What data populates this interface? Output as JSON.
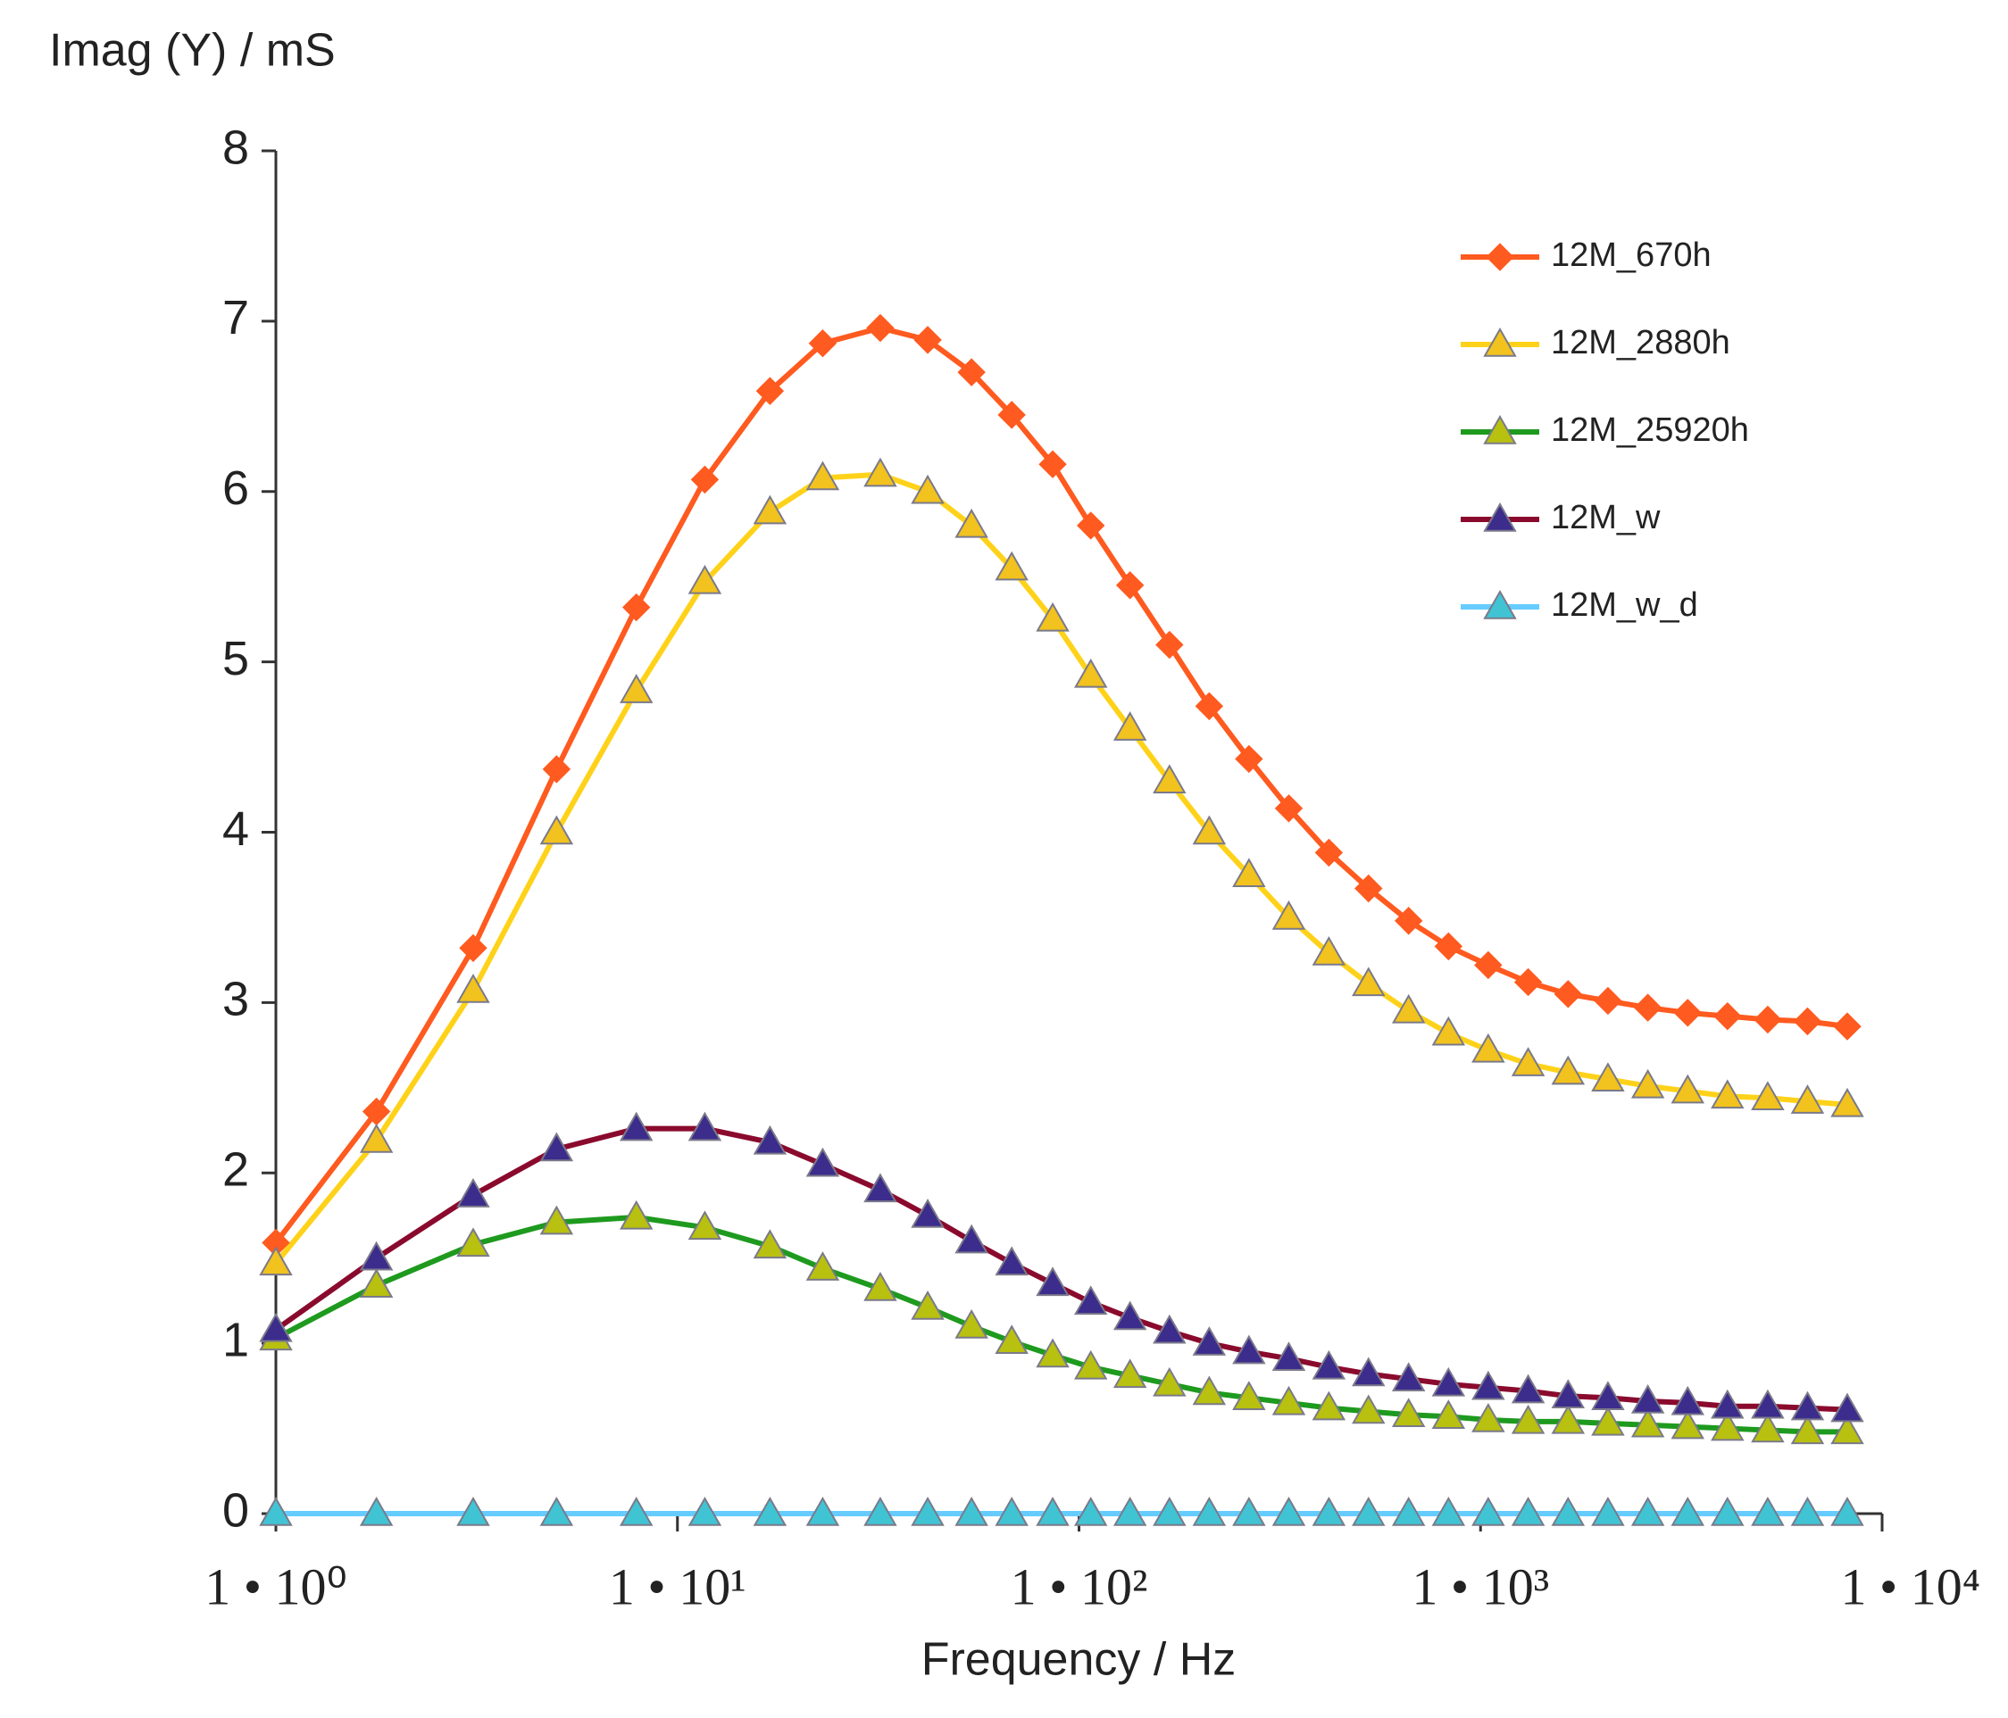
{
  "chart_data": {
    "type": "line",
    "y_label": "Imag (Y) / mS",
    "x_label": "Frequency / Hz",
    "x_scale": "log",
    "x": [
      1,
      1.78,
      3.1,
      5,
      7.9,
      11.7,
      17,
      23,
      32,
      42,
      54,
      68,
      86,
      107,
      134,
      168,
      211,
      265,
      333,
      419,
      526,
      662,
      832,
      1045,
      1314,
      1652,
      2076,
      2610,
      3280,
      4120,
      5190,
      6520,
      8190
    ],
    "xlim": [
      1,
      10000
    ],
    "xticks": [
      {
        "value": 1,
        "label": "1 • 10⁰"
      },
      {
        "value": 10,
        "label": "1 • 10¹"
      },
      {
        "value": 100,
        "label": "1 • 10²"
      },
      {
        "value": 1000,
        "label": "1 • 10³"
      },
      {
        "value": 10000,
        "label": "1 • 10⁴"
      }
    ],
    "ylim": [
      0,
      8
    ],
    "yticks": [
      0,
      1,
      2,
      3,
      4,
      5,
      6,
      7,
      8
    ],
    "grid": false,
    "legend": "upper right",
    "series": [
      {
        "name": "12M_670h",
        "color": "#ff5a1f",
        "marker": "diamond",
        "marker_color": "#ff5a1f",
        "values": [
          1.59,
          2.36,
          3.32,
          4.37,
          5.32,
          6.07,
          6.59,
          6.87,
          6.96,
          6.89,
          6.7,
          6.45,
          6.16,
          5.8,
          5.45,
          5.1,
          4.74,
          4.43,
          4.14,
          3.88,
          3.67,
          3.48,
          3.33,
          3.22,
          3.12,
          3.05,
          3.01,
          2.97,
          2.94,
          2.92,
          2.9,
          2.89,
          2.86
        ]
      },
      {
        "name": "12M_2880h",
        "color": "#ffd21a",
        "marker": "triangle",
        "marker_color": "#f2c21e",
        "values": [
          1.47,
          2.19,
          3.07,
          4.0,
          4.83,
          5.47,
          5.88,
          6.08,
          6.1,
          6.0,
          5.8,
          5.55,
          5.25,
          4.92,
          4.61,
          4.3,
          4.0,
          3.75,
          3.5,
          3.29,
          3.11,
          2.95,
          2.82,
          2.72,
          2.64,
          2.59,
          2.55,
          2.51,
          2.48,
          2.45,
          2.44,
          2.42,
          2.4
        ]
      },
      {
        "name": "12M_25920h",
        "color": "#1e9a1e",
        "marker": "triangle",
        "marker_color": "#b8c010",
        "values": [
          1.03,
          1.34,
          1.58,
          1.71,
          1.74,
          1.68,
          1.57,
          1.44,
          1.32,
          1.21,
          1.1,
          1.01,
          0.93,
          0.86,
          0.81,
          0.76,
          0.71,
          0.68,
          0.65,
          0.62,
          0.6,
          0.58,
          0.57,
          0.55,
          0.54,
          0.54,
          0.53,
          0.52,
          0.51,
          0.5,
          0.49,
          0.48,
          0.48
        ]
      },
      {
        "name": "12M_w",
        "color": "#8a0a2e",
        "marker": "triangle",
        "marker_color": "#3c2c8c",
        "values": [
          1.08,
          1.5,
          1.87,
          2.14,
          2.26,
          2.26,
          2.18,
          2.05,
          1.9,
          1.75,
          1.6,
          1.47,
          1.35,
          1.24,
          1.15,
          1.07,
          1.0,
          0.95,
          0.91,
          0.86,
          0.82,
          0.79,
          0.76,
          0.74,
          0.72,
          0.69,
          0.68,
          0.66,
          0.65,
          0.63,
          0.63,
          0.62,
          0.61
        ]
      },
      {
        "name": "12M_w_d",
        "color": "#66ccff",
        "marker": "triangle",
        "marker_color": "#40c4d4",
        "values": [
          0,
          0,
          0,
          0,
          0,
          0,
          0,
          0,
          0,
          0,
          0,
          0,
          0,
          0,
          0,
          0,
          0,
          0,
          0,
          0,
          0,
          0,
          0,
          0,
          0,
          0,
          0,
          0,
          0,
          0,
          0,
          0,
          0
        ]
      }
    ]
  }
}
